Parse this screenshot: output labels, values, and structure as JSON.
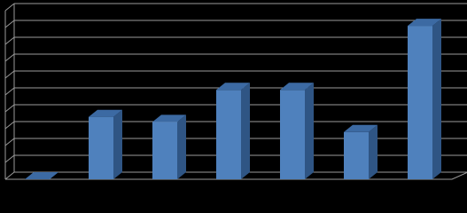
{
  "chart_data": {
    "type": "bar3d",
    "categories": [
      null,
      null,
      null,
      null,
      null,
      null,
      null
    ],
    "values": [
      0,
      3.7,
      3.4,
      5.3,
      5.3,
      2.8,
      9.1
    ],
    "color": "#4f81bd",
    "ylim": [
      0,
      10
    ],
    "yticks": [
      0,
      1,
      2,
      3,
      4,
      5,
      6,
      7,
      8,
      9,
      10
    ],
    "grid": true
  }
}
